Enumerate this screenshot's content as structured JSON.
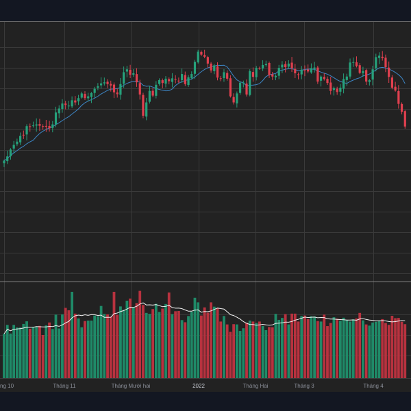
{
  "chart_data": {
    "type": "candlestick",
    "x_tick_labels": [
      "ng 10",
      "Tháng 11",
      "Tháng Mười hai",
      "2022",
      "Tháng Hai",
      "Tháng 3",
      "Tháng 4"
    ],
    "colors": {
      "background": "#131722",
      "plot_background": "#222222",
      "grid": "#3a3a3a",
      "up": "#26a17b",
      "down": "#e0404f",
      "up_volume": "#1f8a68",
      "down_volume": "#b8323f",
      "price_ma": "#3d86c6",
      "volume_ma": "#f2f2f2",
      "separator": "#8c8c8c"
    },
    "price": {
      "close": [
        79.7,
        80.9,
        82.8,
        84.1,
        85.0,
        86.6,
        86.8,
        89.3,
        89.2,
        89.5,
        89.8,
        89.4,
        89.2,
        89.3,
        88.7,
        89.8,
        93.1,
        94.2,
        95.6,
        95.2,
        95.0,
        96.5,
        95.9,
        97.1,
        98.4,
        97.1,
        97.6,
        98.5,
        99.7,
        100.4,
        101.2,
        101.5,
        101.0,
        100.6,
        98.7,
        98.2,
        101.0,
        104.3,
        105.1,
        103.6,
        104.0,
        101.5,
        98.1,
        92.2,
        95.9,
        99.1,
        97.8,
        100.8,
        102.1,
        101.3,
        102.5,
        101.8,
        102.6,
        102.2,
        101.9,
        103.8,
        101.0,
        102.9,
        103.8,
        107.2,
        110.0,
        109.2,
        108.6,
        106.7,
        104.8,
        106.2,
        102.8,
        102.6,
        104.3,
        102.5,
        97.6,
        95.9,
        98.4,
        101.4,
        101.4,
        98.1,
        104.6,
        103.0,
        105.5,
        105.4,
        106.3,
        106.6,
        103.5,
        103.1,
        103.3,
        105.5,
        106.4,
        105.7,
        106.7,
        105.4,
        104.0,
        103.7,
        105.0,
        104.8,
        104.5,
        105.4,
        105.6,
        101.7,
        103.1,
        102.4,
        101.3,
        99.1,
        99.9,
        98.8,
        100.0,
        102.4,
        103.1,
        107.0,
        107.1,
        106.0,
        104.1,
        104.6,
        101.7,
        102.1,
        105.1,
        108.5,
        108.9,
        108.2,
        105.7,
        103.0,
        100.0,
        99.2,
        95.5,
        93.3,
        89.2
      ]
    },
    "volume": {
      "values": [
        18.5,
        22.2,
        18.6,
        22.2,
        21.1,
        21.1,
        22.6,
        23.7,
        20.6,
        21.4,
        21.3,
        21.8,
        18.0,
        22.0,
        23.2,
        20.5,
        26.5,
        20.7,
        26.6,
        29.3,
        28.3,
        36.0,
        26.9,
        24.9,
        21.2,
        23.8,
        24.0,
        24.0,
        26.1,
        25.8,
        30.1,
        26.8,
        26.6,
        25.6,
        36.0,
        26.4,
        29.9,
        28.5,
        32.3,
        33.2,
        29.5,
        31.3,
        36.4,
        30.5,
        27.2,
        26.8,
        28.8,
        31.0,
        27.6,
        29.0,
        30.9,
        35.7,
        26.7,
        27.9,
        28.0,
        24.2,
        23.3,
        25.9,
        27.7,
        33.5,
        31.6,
        26.1,
        29.5,
        27.3,
        31.6,
        29.8,
        29.2,
        23.6,
        25.9,
        22.4,
        19.3,
        22.5,
        22.4,
        19.7,
        20.8,
        23.1,
        24.0,
        23.6,
        23.0,
        23.6,
        21.7,
        20.0,
        21.3,
        21.2,
        26.8,
        24.3,
        25.1,
        26.7,
        22.4,
        26.9,
        26.9,
        23.6,
        25.9,
        26.1,
        24.6,
        25.8,
        25.7,
        23.8,
        23.6,
        26.5,
        21.7,
        23.0,
        25.4,
        24.8,
        24.0,
        25.2,
        24.2,
        23.6,
        24.5,
        24.9,
        27.2,
        24.1,
        22.4,
        21.9,
        23.2,
        23.5,
        23.8,
        24.6,
        23.0,
        22.2,
        26.0,
        25.0,
        25.1,
        23.5,
        22.5
      ]
    }
  }
}
